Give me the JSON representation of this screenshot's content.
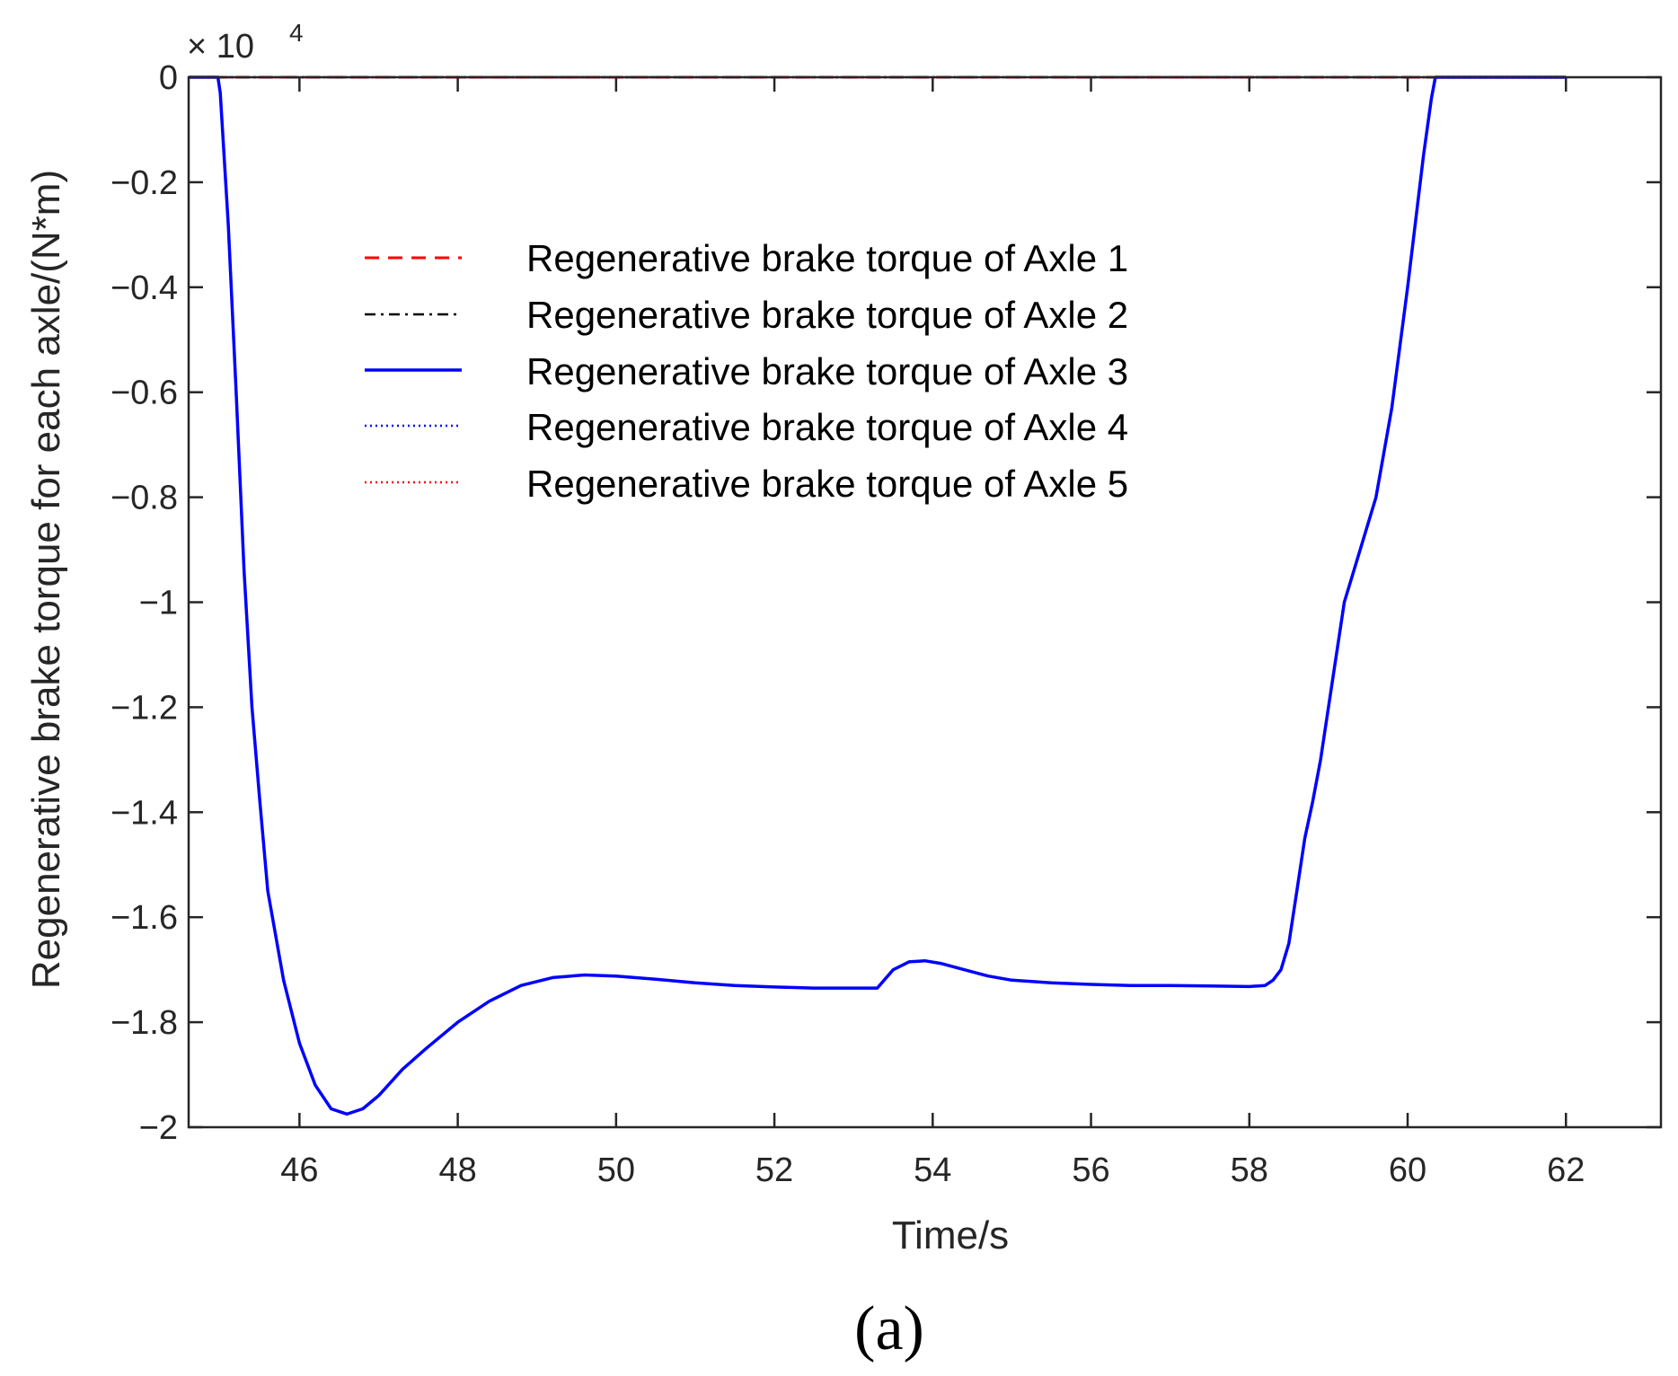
{
  "chart_data": {
    "type": "line",
    "title": "",
    "xlabel": "Time/s",
    "ylabel": "Regenerative brake torque for each axle/(N*m)",
    "y_exponent_label": "× 10",
    "y_exponent_power": "4",
    "panel_label": "(a)",
    "xlim": [
      44.6,
      63.2
    ],
    "ylim": [
      -2,
      0
    ],
    "x_ticks": [
      46,
      48,
      50,
      52,
      54,
      56,
      58,
      60,
      62
    ],
    "x_tick_labels": [
      "46",
      "48",
      "50",
      "52",
      "54",
      "56",
      "58",
      "60",
      "62"
    ],
    "y_ticks": [
      0,
      -0.2,
      -0.4,
      -0.6,
      -0.8,
      -1,
      -1.2,
      -1.4,
      -1.6,
      -1.8,
      -2
    ],
    "y_tick_labels": [
      "0",
      "−0.2",
      "−0.4",
      "−0.6",
      "−0.8",
      "−1",
      "−1.2",
      "−1.4",
      "−1.6",
      "−1.8",
      "−2"
    ],
    "grid": false,
    "legend_position": "upper-middle",
    "series": [
      {
        "name": "Regenerative brake torque of Axle 1",
        "color": "#ff0000",
        "style": "dashed",
        "x": [
          44.6,
          62.0
        ],
        "y": [
          0,
          0
        ]
      },
      {
        "name": "Regenerative brake torque of Axle 2",
        "color": "#000000",
        "style": "dashdot",
        "x": [
          44.6,
          62.0
        ],
        "y": [
          0,
          0
        ]
      },
      {
        "name": "Regenerative brake torque of Axle 3",
        "color": "#0000ff",
        "style": "solid",
        "x": [
          44.6,
          44.97,
          45.0,
          45.1,
          45.2,
          45.3,
          45.4,
          45.5,
          45.6,
          45.8,
          46.0,
          46.2,
          46.4,
          46.6,
          46.8,
          47.0,
          47.3,
          47.6,
          48.0,
          48.4,
          48.8,
          49.2,
          49.6,
          50.0,
          50.5,
          51.0,
          51.5,
          52.0,
          52.5,
          53.0,
          53.3,
          53.5,
          53.7,
          53.9,
          54.1,
          54.4,
          54.7,
          55.0,
          55.5,
          56.0,
          56.5,
          57.0,
          57.5,
          58.0,
          58.2,
          58.3,
          58.4,
          58.5,
          58.6,
          58.7,
          58.8,
          58.9,
          59.0,
          59.1,
          59.2,
          59.4,
          59.6,
          59.8,
          60.0,
          60.2,
          60.3,
          60.35,
          62.0
        ],
        "y": [
          0,
          0,
          -0.03,
          -0.28,
          -0.6,
          -0.94,
          -1.2,
          -1.38,
          -1.55,
          -1.72,
          -1.84,
          -1.92,
          -1.965,
          -1.975,
          -1.965,
          -1.94,
          -1.89,
          -1.85,
          -1.8,
          -1.76,
          -1.73,
          -1.715,
          -1.71,
          -1.712,
          -1.718,
          -1.725,
          -1.73,
          -1.733,
          -1.735,
          -1.735,
          -1.735,
          -1.7,
          -1.685,
          -1.683,
          -1.688,
          -1.7,
          -1.712,
          -1.72,
          -1.725,
          -1.728,
          -1.73,
          -1.73,
          -1.731,
          -1.732,
          -1.73,
          -1.72,
          -1.7,
          -1.65,
          -1.55,
          -1.45,
          -1.38,
          -1.3,
          -1.2,
          -1.1,
          -1.0,
          -0.9,
          -0.8,
          -0.63,
          -0.4,
          -0.15,
          -0.04,
          0,
          0
        ]
      },
      {
        "name": "Regenerative brake torque of Axle 4",
        "color": "#0000ff",
        "style": "dotted",
        "x": [
          44.6,
          62.0
        ],
        "y": [
          0,
          0
        ]
      },
      {
        "name": "Regenerative brake torque of Axle 5",
        "color": "#ff0000",
        "style": "dotted",
        "x": [
          44.6,
          62.0
        ],
        "y": [
          0,
          0
        ]
      }
    ]
  }
}
